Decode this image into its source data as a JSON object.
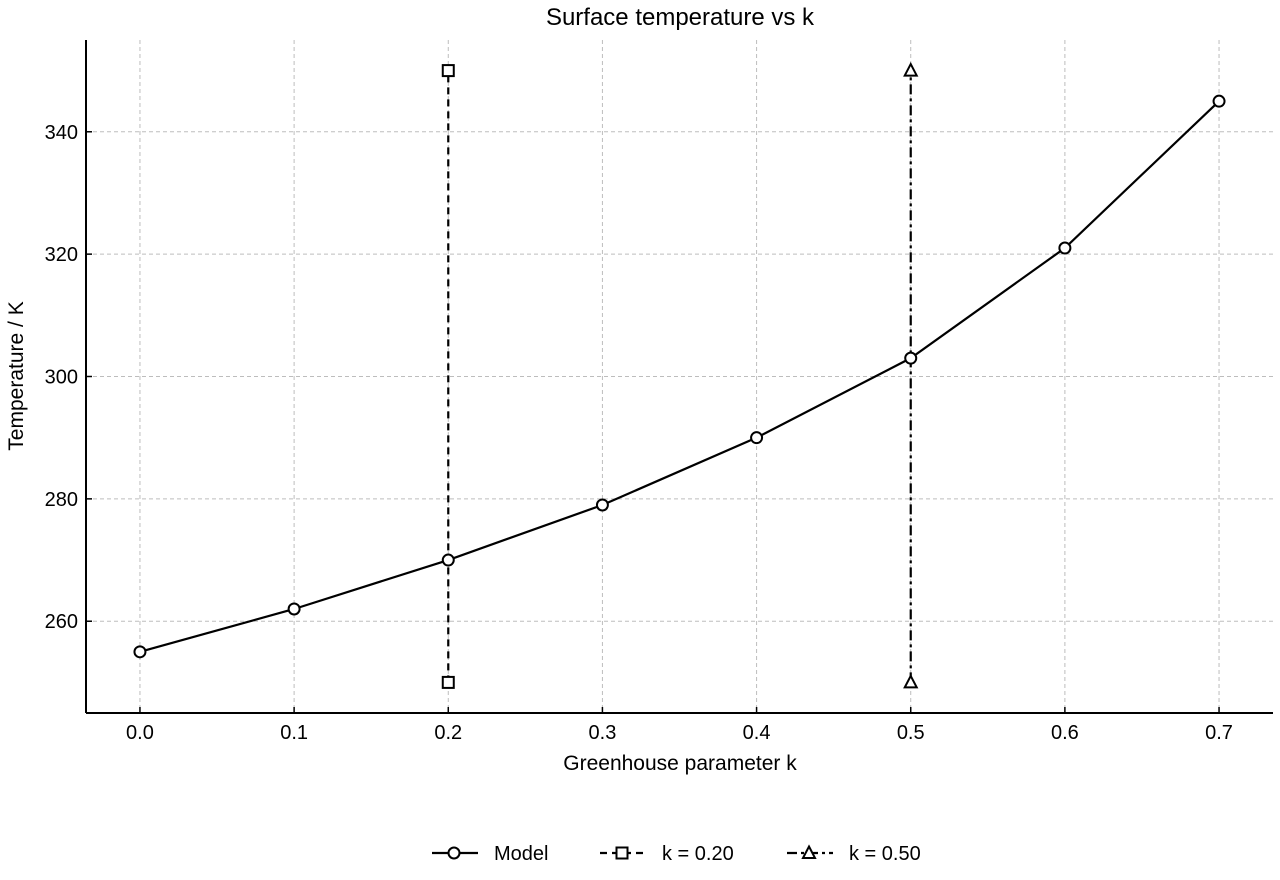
{
  "chart_data": {
    "type": "line",
    "title": "Surface temperature vs k",
    "xlabel": "Greenhouse parameter k",
    "ylabel": "Temperature / K",
    "xlim": [
      -0.035,
      0.735
    ],
    "ylim": [
      245,
      355
    ],
    "xticks": [
      "0.0",
      "0.1",
      "0.2",
      "0.3",
      "0.4",
      "0.5",
      "0.6",
      "0.7"
    ],
    "xtick_values": [
      0.0,
      0.1,
      0.2,
      0.3,
      0.4,
      0.5,
      0.6,
      0.7
    ],
    "yticks": [
      "260",
      "280",
      "300",
      "320",
      "340"
    ],
    "ytick_values": [
      260,
      280,
      300,
      320,
      340
    ],
    "grid": true,
    "legend_position": "bottom-center",
    "series": [
      {
        "name": "Model",
        "x": [
          0.0,
          0.1,
          0.2,
          0.3,
          0.4,
          0.5,
          0.6,
          0.7
        ],
        "y": [
          255,
          262,
          270,
          279,
          290,
          303,
          321,
          345
        ],
        "line_style": "solid",
        "marker": "circle",
        "color": "#000000"
      },
      {
        "name": "k = 0.20",
        "x": [
          0.2,
          0.2
        ],
        "y": [
          250,
          350
        ],
        "line_style": "dashed",
        "marker": "square",
        "color": "#000000"
      },
      {
        "name": "k = 0.50",
        "x": [
          0.5,
          0.5
        ],
        "y": [
          250,
          350
        ],
        "line_style": "dashdot",
        "marker": "triangle",
        "color": "#000000"
      }
    ]
  }
}
